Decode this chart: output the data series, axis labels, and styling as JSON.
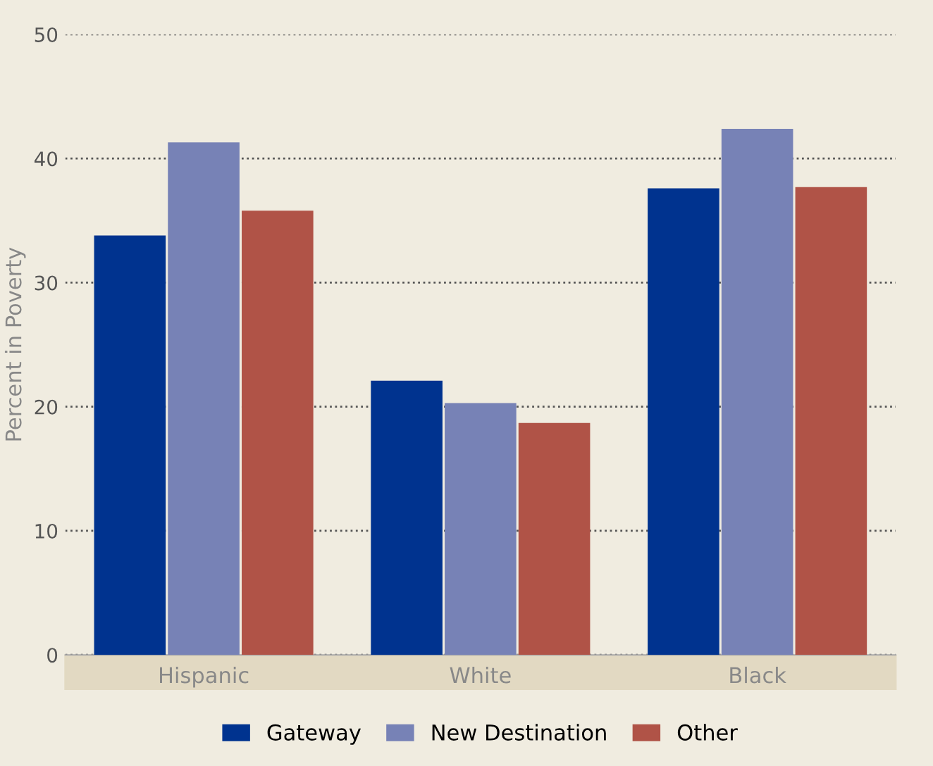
{
  "chart_data": {
    "type": "bar",
    "ylabel": "Percent in Poverty",
    "categories": [
      "Hispanic",
      "White",
      "Black"
    ],
    "series": [
      {
        "name": "Gateway",
        "color": "#00338f",
        "values": [
          33.8,
          22.1,
          37.6
        ]
      },
      {
        "name": "New Destination",
        "color": "#7782b6",
        "values": [
          41.3,
          20.3,
          42.4
        ]
      },
      {
        "name": "Other",
        "color": "#b05347",
        "values": [
          35.8,
          18.7,
          37.7
        ]
      }
    ],
    "ylim": [
      0,
      50
    ],
    "yticks": [
      0,
      10,
      20,
      30,
      40,
      50
    ],
    "grid": "y",
    "legend": "bottom"
  }
}
